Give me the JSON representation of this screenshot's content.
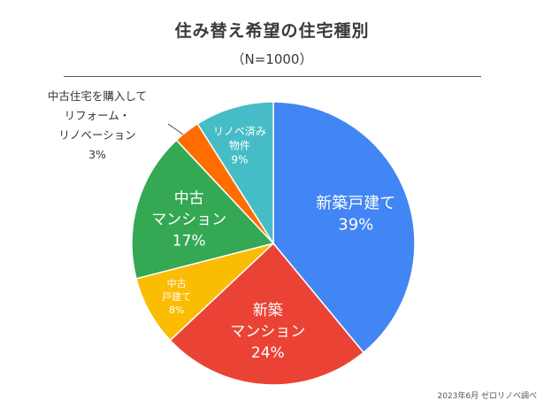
{
  "header": {
    "title": "住み替え希望の住宅種別",
    "subtitle": "（N=1000）"
  },
  "footer": {
    "source": "2023年6月 ゼロリノベ調べ"
  },
  "chart_data": {
    "type": "pie",
    "title": "住み替え希望の住宅種別",
    "subtitle": "（N=1000）",
    "start_angle_deg": 0,
    "direction": "clockwise",
    "slices": [
      {
        "label_lines": [
          "新築戸建て"
        ],
        "value": 39,
        "value_label": "39%",
        "color": "#4285F4",
        "label_color": "#ffffff"
      },
      {
        "label_lines": [
          "新築",
          "マンション"
        ],
        "value": 24,
        "value_label": "24%",
        "color": "#EA4335",
        "label_color": "#ffffff"
      },
      {
        "label_lines": [
          "中古",
          "戸建て"
        ],
        "value": 8,
        "value_label": "8%",
        "color": "#FBBC04",
        "label_color": "#ffffff"
      },
      {
        "label_lines": [
          "中古",
          "マンション"
        ],
        "value": 17,
        "value_label": "17%",
        "color": "#34A853",
        "label_color": "#ffffff"
      },
      {
        "label_lines": [
          "中古住宅を購入して",
          "リフォーム・",
          "リノベーション"
        ],
        "value": 3,
        "value_label": "3%",
        "color": "#FF6D01",
        "label_color": "#333333"
      },
      {
        "label_lines": [
          "リノベ済み",
          "物件"
        ],
        "value": 9,
        "value_label": "9%",
        "color": "#46BDC6",
        "label_color": "#ffffff"
      }
    ]
  }
}
